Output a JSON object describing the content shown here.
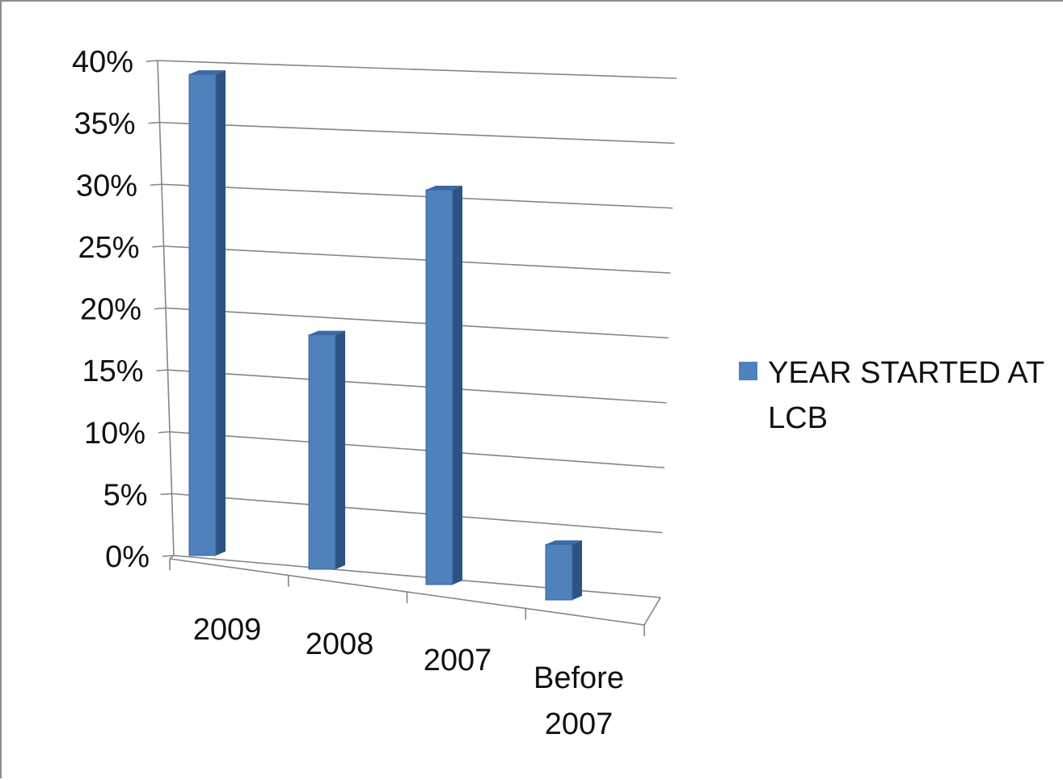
{
  "chart_data": {
    "type": "bar",
    "categories": [
      "2009",
      "2008",
      "2007",
      "Before 2007"
    ],
    "series": [
      {
        "name": "YEAR STARTED AT LCB",
        "values": [
          39,
          19,
          32,
          4.5
        ]
      }
    ],
    "ylim": [
      0,
      40
    ],
    "y_ticks": [
      "0%",
      "5%",
      "10%",
      "15%",
      "20%",
      "25%",
      "30%",
      "35%",
      "40%"
    ],
    "x_labels": [
      [
        "2009"
      ],
      [
        "2008"
      ],
      [
        "2007"
      ],
      [
        "Before",
        "2007"
      ]
    ],
    "legend": {
      "lines": [
        "YEAR STARTED AT",
        "LCB"
      ],
      "placement": "right"
    },
    "grid": true,
    "colors": {
      "bar_front": "#4f81bd",
      "bar_side": "#2c5383",
      "bar_top": "#3c6aa3",
      "bar_edge": "#3a659b",
      "grid": "#858585"
    }
  }
}
